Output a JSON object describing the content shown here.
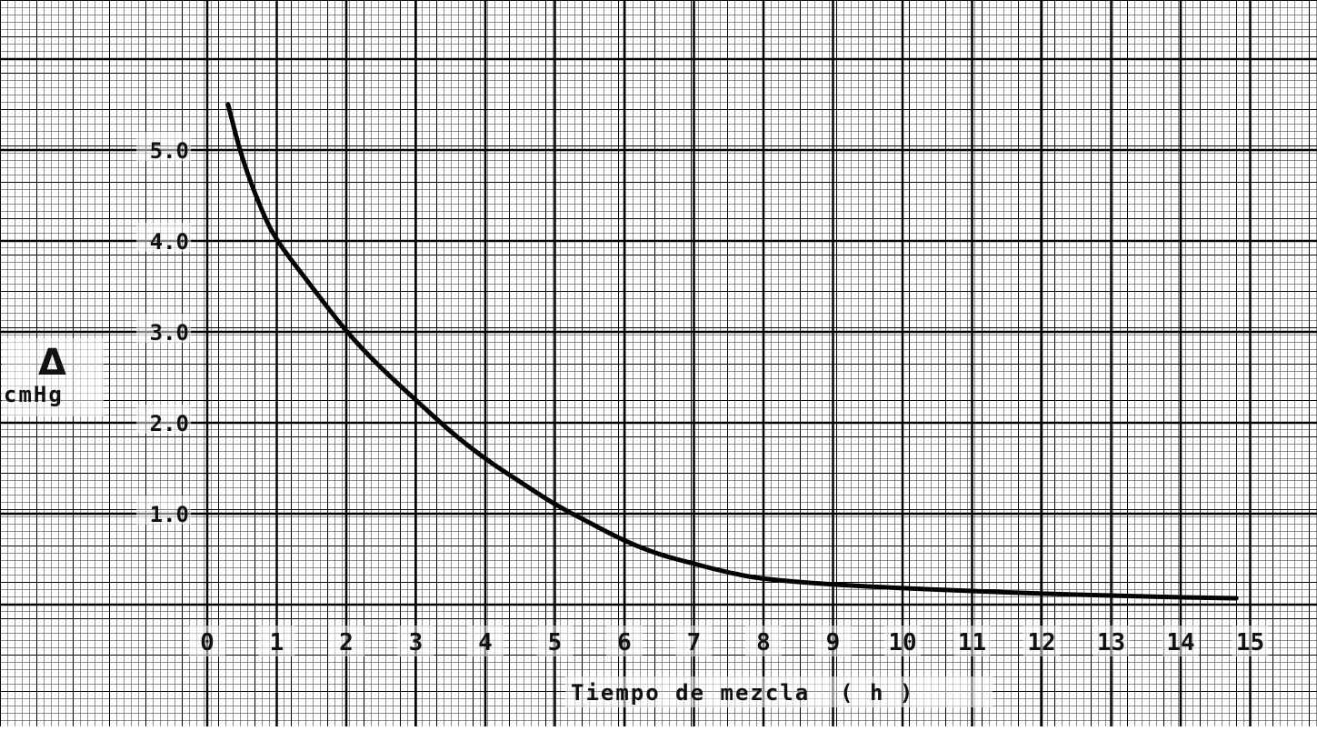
{
  "chart_data": {
    "type": "line",
    "xlabel": "Tiempo de mezcla  ( h )",
    "ylabel_symbol": "Δ",
    "ylabel_unit": "cmHg",
    "x_ticks": [
      "0",
      "1",
      "2",
      "3",
      "4",
      "5",
      "6",
      "7",
      "8",
      "9",
      "10",
      "11",
      "12",
      "13",
      "14",
      "15"
    ],
    "y_ticks": [
      {
        "value": 1.0,
        "label": "1.0"
      },
      {
        "value": 2.0,
        "label": "2.0"
      },
      {
        "value": 3.0,
        "label": "3.0"
      },
      {
        "value": 4.0,
        "label": "4.0"
      },
      {
        "value": 5.0,
        "label": "5.0"
      }
    ],
    "xlim": [
      0,
      15
    ],
    "ylim": [
      0,
      6.5
    ],
    "grid": true,
    "series": [
      {
        "x": [
          0.3,
          0.5,
          0.8,
          1.0,
          1.5,
          2.0,
          2.5,
          3.0,
          3.5,
          4.0,
          4.5,
          5.0,
          5.5,
          6.0,
          6.5,
          7.0,
          7.5,
          8.0,
          9.0,
          10.0,
          11.0,
          12.0,
          13.0,
          14.0,
          14.8
        ],
        "y": [
          5.5,
          4.9,
          4.3,
          4.0,
          3.5,
          3.0,
          2.6,
          2.25,
          1.9,
          1.6,
          1.35,
          1.1,
          0.9,
          0.7,
          0.55,
          0.45,
          0.35,
          0.28,
          0.22,
          0.18,
          0.15,
          0.12,
          0.1,
          0.08,
          0.07
        ]
      }
    ]
  }
}
